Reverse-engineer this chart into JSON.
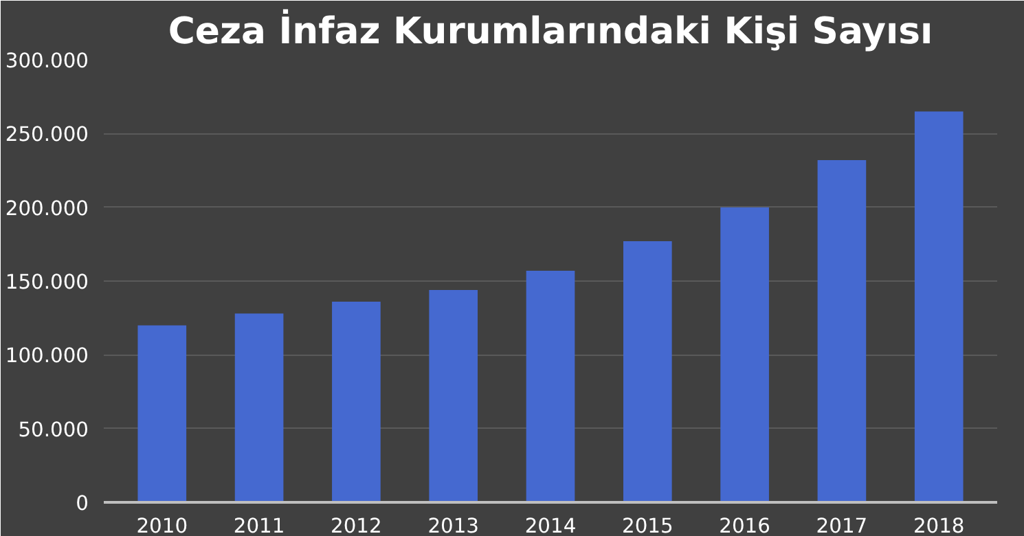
{
  "chart_data": {
    "type": "bar",
    "title": "Ceza İnfaz Kurumlarındaki Kişi Sayısı",
    "categories": [
      "2010",
      "2011",
      "2012",
      "2013",
      "2014",
      "2015",
      "2016",
      "2017",
      "2018"
    ],
    "values": [
      120000,
      128000,
      136000,
      144000,
      157000,
      177000,
      200000,
      232000,
      265000
    ],
    "color": "#4569d0",
    "ylim": [
      0,
      300000
    ],
    "yticks": [
      0,
      {
        "value": 50000,
        "label": "50.000"
      },
      {
        "value": 100000,
        "label": "100.000"
      },
      {
        "value": 150000,
        "label": "150.000"
      },
      {
        "value": 200000,
        "label": "200.000"
      },
      {
        "value": 250000,
        "label": "250.000"
      },
      {
        "value": 300000,
        "label": "300.000"
      }
    ],
    "grid": "y"
  }
}
